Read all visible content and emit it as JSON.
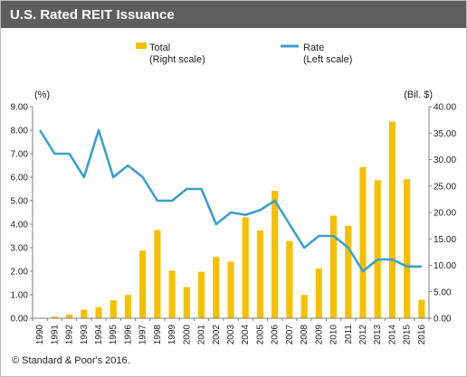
{
  "header": {
    "title": "U.S. Rated REIT Issuance"
  },
  "footer": {
    "copyright": "© Standard & Poor's 2016."
  },
  "colors": {
    "bar": "#f5c000",
    "line": "#3aa0cc",
    "title_bg": "#5e5e5e",
    "axis": "#7f7f7f"
  },
  "chart_data": {
    "type": "bar+line",
    "categories": [
      "1990",
      "1991",
      "1992",
      "1993",
      "1994",
      "1995",
      "1996",
      "1997",
      "1998",
      "1999",
      "2000",
      "2001",
      "2002",
      "2003",
      "2004",
      "2005",
      "2006",
      "2007",
      "2008",
      "2009",
      "2010",
      "2011",
      "2012",
      "2013",
      "2014",
      "2015",
      "2016"
    ],
    "left_axis": {
      "label": "(%)",
      "ylim": [
        0,
        9
      ],
      "ticks": [
        "0.00",
        "1.00",
        "2.00",
        "3.00",
        "4.00",
        "5.00",
        "6.00",
        "7.00",
        "8.00",
        "9.00"
      ]
    },
    "right_axis": {
      "label": "(Bil. $)",
      "ylim": [
        0,
        40
      ],
      "ticks": [
        "0.00",
        "5.00",
        "10.00",
        "15.00",
        "20.00",
        "25.00",
        "30.00",
        "35.00",
        "40.00"
      ]
    },
    "series": [
      {
        "name": "Total",
        "legend_note": "(Right scale)",
        "type": "bar",
        "axis": "right",
        "values": [
          0.05,
          0.3,
          0.7,
          1.6,
          2.1,
          3.4,
          4.4,
          12.8,
          16.7,
          9.0,
          5.9,
          8.8,
          11.6,
          10.7,
          19.1,
          16.6,
          24.1,
          14.6,
          4.4,
          9.4,
          19.4,
          17.5,
          28.6,
          26.1,
          37.2,
          26.3,
          3.5
        ]
      },
      {
        "name": "Rate",
        "legend_note": "(Left scale)",
        "type": "line",
        "axis": "left",
        "values": [
          8.0,
          7.0,
          7.0,
          6.0,
          8.0,
          6.0,
          6.5,
          6.0,
          5.0,
          5.0,
          5.5,
          5.5,
          4.0,
          4.5,
          4.4,
          4.6,
          5.0,
          4.0,
          3.0,
          3.5,
          3.5,
          3.0,
          2.0,
          2.5,
          2.5,
          2.2,
          2.2
        ]
      }
    ]
  }
}
